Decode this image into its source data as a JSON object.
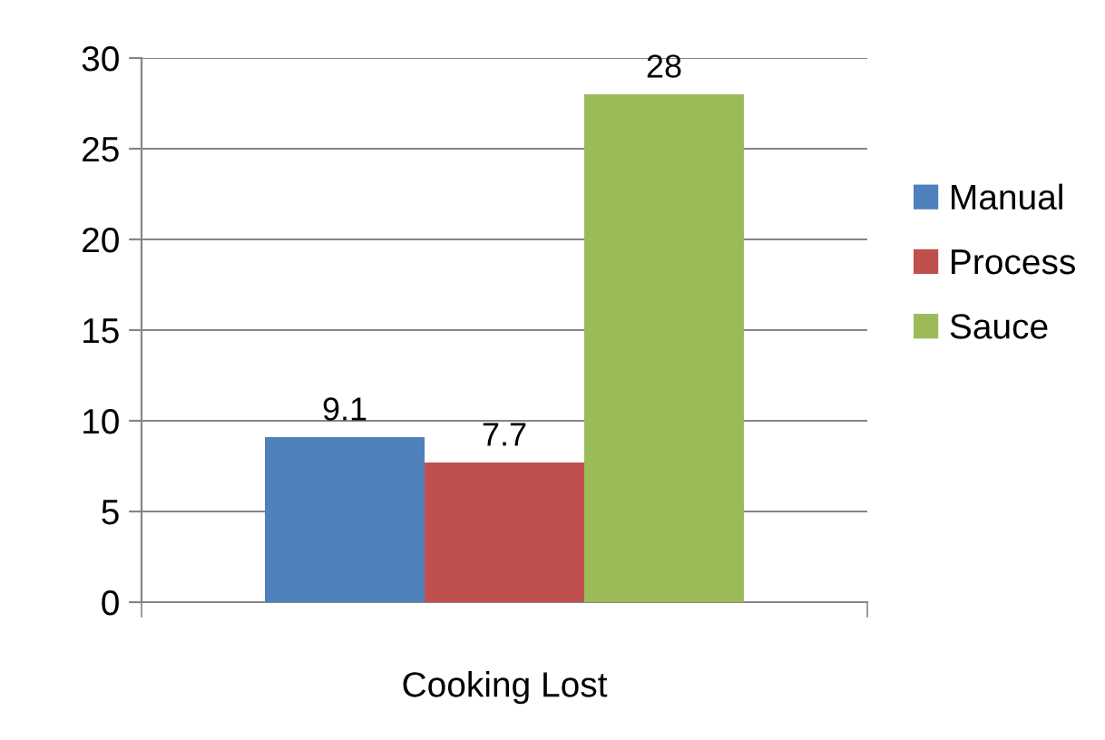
{
  "chart_data": {
    "type": "bar",
    "categories": [
      null,
      null,
      null
    ],
    "xlabel": "Cooking Lost",
    "series": [
      {
        "name": "Manual",
        "color": "#4f81bd",
        "values": [
          9.1,
          null,
          null
        ]
      },
      {
        "name": "Process",
        "color": "#c0504d",
        "values": [
          null,
          7.7,
          null
        ]
      },
      {
        "name": "Sauce",
        "color": "#9bbb59",
        "values": [
          null,
          null,
          28
        ]
      }
    ],
    "ylim": [
      0,
      30
    ],
    "yticks": [
      0,
      5,
      10,
      15,
      20,
      25,
      30
    ],
    "grid": "y",
    "legend": "right",
    "data_labels": true
  }
}
